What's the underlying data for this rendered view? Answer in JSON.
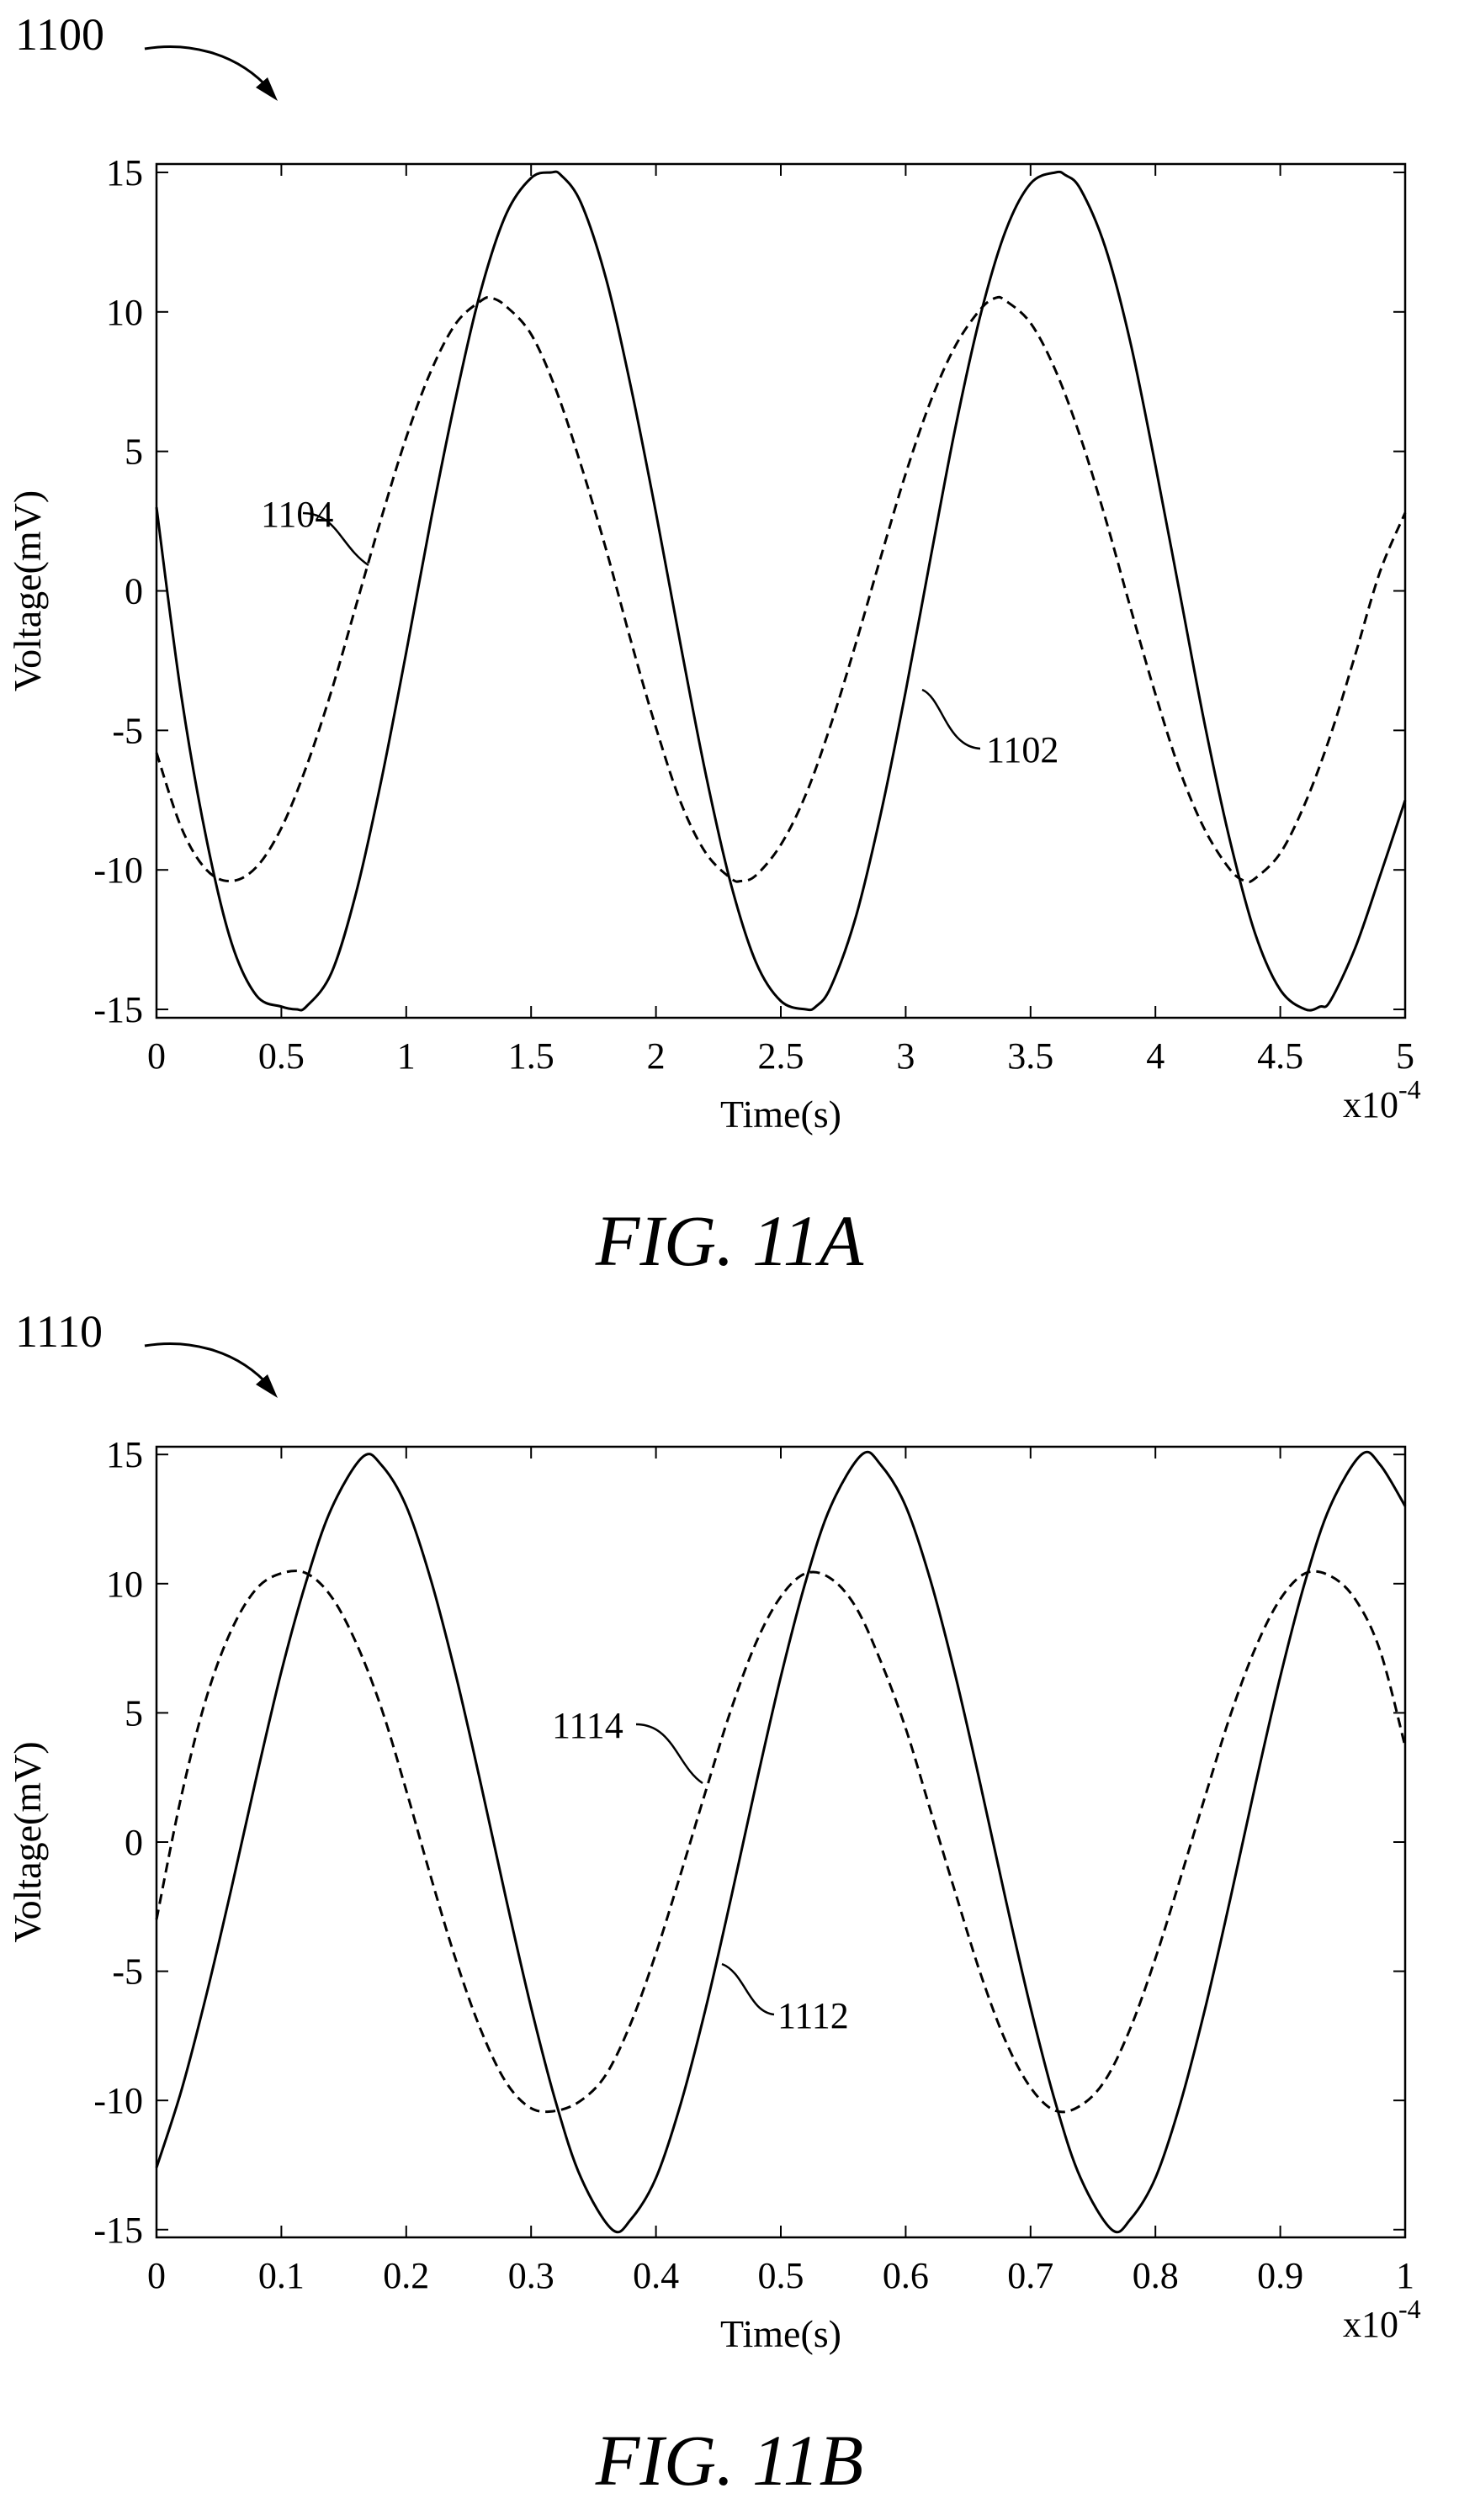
{
  "figures": [
    {
      "ref_label": "1100",
      "caption": "FIG. 11A"
    },
    {
      "ref_label": "1110",
      "caption": "FIG. 11B"
    }
  ],
  "chart_data": [
    {
      "type": "line",
      "xlabel": "Time(s)",
      "ylabel": "Voltage(mV)",
      "x_multiplier": "x10",
      "x_exponent": "-4",
      "xlim": [
        0,
        5
      ],
      "ylim": [
        -15.3,
        15.3
      ],
      "xticks": [
        "0",
        "0.5",
        "1",
        "1.5",
        "2",
        "2.5",
        "3",
        "3.5",
        "4",
        "4.5",
        "5"
      ],
      "yticks": [
        "15",
        "10",
        "5",
        "0",
        "-5",
        "-10",
        "-15"
      ],
      "ytick_values": [
        15,
        10,
        5,
        0,
        -5,
        -10,
        -15
      ],
      "x_tick_values": [
        0,
        0.5,
        1,
        1.5,
        2,
        2.5,
        3,
        3.5,
        4,
        4.5,
        5
      ],
      "series": [
        {
          "label": "1102",
          "style": "solid",
          "x": [
            0,
            0.1,
            0.2,
            0.3,
            0.4,
            0.5,
            0.56,
            0.6,
            0.7,
            0.8,
            0.9,
            1.0,
            1.1,
            1.2,
            1.3,
            1.4,
            1.5,
            1.58,
            1.62,
            1.7,
            1.8,
            1.9,
            2.0,
            2.1,
            2.2,
            2.3,
            2.4,
            2.5,
            2.6,
            2.64,
            2.7,
            2.8,
            2.9,
            3.0,
            3.1,
            3.2,
            3.3,
            3.4,
            3.5,
            3.6,
            3.64,
            3.7,
            3.8,
            3.9,
            4.0,
            4.1,
            4.2,
            4.3,
            4.4,
            4.5,
            4.6,
            4.66,
            4.7,
            4.8,
            4.9,
            5.0
          ],
          "y": [
            3.0,
            -3.8,
            -8.9,
            -12.6,
            -14.5,
            -14.9,
            -15.0,
            -14.9,
            -13.7,
            -10.8,
            -6.8,
            -2.2,
            2.6,
            7.0,
            10.8,
            13.5,
            14.8,
            15.0,
            14.9,
            13.9,
            11.2,
            7.3,
            2.8,
            -2.0,
            -6.6,
            -10.5,
            -13.3,
            -14.7,
            -15.0,
            -14.9,
            -14.2,
            -11.7,
            -8.0,
            -3.6,
            1.2,
            5.9,
            9.9,
            12.9,
            14.6,
            15.0,
            14.9,
            14.4,
            12.3,
            8.9,
            4.5,
            -0.2,
            -4.9,
            -9.0,
            -12.3,
            -14.3,
            -15.0,
            -14.9,
            -14.7,
            -12.8,
            -10.2,
            -7.5
          ]
        },
        {
          "label": "1104",
          "style": "dashed",
          "x": [
            0,
            0.1,
            0.2,
            0.3,
            0.4,
            0.5,
            0.6,
            0.7,
            0.8,
            0.9,
            1.0,
            1.1,
            1.2,
            1.3,
            1.34,
            1.4,
            1.5,
            1.6,
            1.7,
            1.8,
            1.9,
            2.0,
            2.1,
            2.2,
            2.3,
            2.34,
            2.4,
            2.5,
            2.6,
            2.7,
            2.8,
            2.9,
            3.0,
            3.1,
            3.2,
            3.3,
            3.36,
            3.4,
            3.5,
            3.6,
            3.7,
            3.8,
            3.9,
            4.0,
            4.1,
            4.2,
            4.3,
            4.36,
            4.4,
            4.5,
            4.6,
            4.7,
            4.8,
            4.9,
            5.0
          ],
          "y": [
            -5.8,
            -8.5,
            -10.0,
            -10.4,
            -9.9,
            -8.5,
            -6.3,
            -3.6,
            -0.5,
            2.6,
            5.5,
            7.9,
            9.6,
            10.4,
            10.5,
            10.2,
            9.2,
            7.2,
            4.5,
            1.5,
            -1.8,
            -4.9,
            -7.6,
            -9.4,
            -10.3,
            -10.4,
            -10.2,
            -9.1,
            -7.3,
            -4.8,
            -1.9,
            1.2,
            4.2,
            6.8,
            8.8,
            10.1,
            10.5,
            10.4,
            9.6,
            7.9,
            5.5,
            2.6,
            -0.6,
            -3.7,
            -6.5,
            -8.6,
            -10.0,
            -10.4,
            -10.3,
            -9.4,
            -7.6,
            -5.2,
            -2.3,
            0.7,
            2.8
          ]
        }
      ]
    },
    {
      "type": "line",
      "xlabel": "Time(s)",
      "ylabel": "Voltage(mV)",
      "x_multiplier": "x10",
      "x_exponent": "-4",
      "xlim": [
        0,
        1
      ],
      "ylim": [
        -15.3,
        15.3
      ],
      "xticks": [
        "0",
        "0.1",
        "0.2",
        "0.3",
        "0.4",
        "0.5",
        "0.6",
        "0.7",
        "0.8",
        "0.9",
        "1"
      ],
      "yticks": [
        "15",
        "10",
        "5",
        "0",
        "-5",
        "-10",
        "-15"
      ],
      "ytick_values": [
        15,
        10,
        5,
        0,
        -5,
        -10,
        -15
      ],
      "x_tick_values": [
        0,
        0.1,
        0.2,
        0.3,
        0.4,
        0.5,
        0.6,
        0.7,
        0.8,
        0.9,
        1.0
      ],
      "series": [
        {
          "label": "1112",
          "style": "solid",
          "x": [
            0,
            0.02,
            0.04,
            0.06,
            0.08,
            0.1,
            0.12,
            0.14,
            0.165,
            0.18,
            0.2,
            0.22,
            0.24,
            0.26,
            0.28,
            0.3,
            0.32,
            0.34,
            0.365,
            0.38,
            0.4,
            0.42,
            0.44,
            0.46,
            0.48,
            0.5,
            0.52,
            0.54,
            0.565,
            0.58,
            0.6,
            0.62,
            0.64,
            0.66,
            0.68,
            0.7,
            0.72,
            0.74,
            0.765,
            0.78,
            0.8,
            0.82,
            0.84,
            0.86,
            0.88,
            0.9,
            0.92,
            0.94,
            0.965,
            0.98,
            1.0
          ],
          "y": [
            -12.6,
            -9.6,
            -5.9,
            -1.8,
            2.5,
            6.6,
            10.1,
            12.9,
            14.9,
            14.6,
            13.0,
            10.1,
            6.4,
            2.2,
            -2.2,
            -6.4,
            -10.1,
            -13.0,
            -15.0,
            -14.6,
            -13.0,
            -10.1,
            -6.4,
            -2.2,
            2.2,
            6.4,
            10.1,
            13.0,
            15.0,
            14.6,
            13.0,
            10.1,
            6.4,
            2.2,
            -2.2,
            -6.4,
            -10.1,
            -13.0,
            -15.0,
            -14.6,
            -13.0,
            -10.1,
            -6.4,
            -2.2,
            2.2,
            6.4,
            10.1,
            13.0,
            15.0,
            14.6,
            13.0
          ]
        },
        {
          "label": "1114",
          "style": "dashed",
          "x": [
            0,
            0.02,
            0.04,
            0.06,
            0.08,
            0.1,
            0.12,
            0.14,
            0.16,
            0.18,
            0.2,
            0.22,
            0.24,
            0.26,
            0.28,
            0.3,
            0.32,
            0.34,
            0.36,
            0.38,
            0.4,
            0.42,
            0.44,
            0.46,
            0.48,
            0.5,
            0.52,
            0.54,
            0.56,
            0.58,
            0.6,
            0.62,
            0.64,
            0.66,
            0.68,
            0.7,
            0.72,
            0.74,
            0.76,
            0.78,
            0.8,
            0.82,
            0.84,
            0.86,
            0.88,
            0.9,
            0.92,
            0.94,
            0.96,
            0.98,
            1.0
          ],
          "y": [
            -3.0,
            1.8,
            5.6,
            8.2,
            9.8,
            10.4,
            10.4,
            9.5,
            7.7,
            5.2,
            2.0,
            -1.4,
            -4.6,
            -7.3,
            -9.3,
            -10.3,
            -10.4,
            -10.0,
            -9.0,
            -7.0,
            -4.3,
            -1.2,
            2.0,
            5.1,
            7.7,
            9.5,
            10.4,
            10.2,
            9.1,
            7.0,
            4.4,
            1.2,
            -2.0,
            -5.1,
            -7.7,
            -9.5,
            -10.4,
            -10.2,
            -9.2,
            -7.2,
            -4.5,
            -1.4,
            1.8,
            4.9,
            7.5,
            9.4,
            10.4,
            10.3,
            9.4,
            7.4,
            3.7
          ]
        }
      ]
    }
  ]
}
